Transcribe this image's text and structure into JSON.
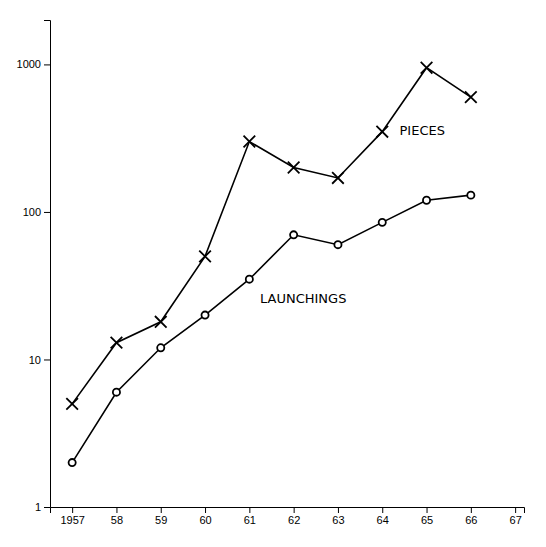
{
  "chart_data": {
    "type": "line",
    "log": "y",
    "grid": false,
    "x": [
      1957,
      1958,
      1959,
      1960,
      1961,
      1962,
      1963,
      1964,
      1965,
      1966
    ],
    "series": [
      {
        "color": "#000000",
        "marker": "x",
        "line_style": "solid",
        "values": [
          5,
          13,
          18,
          50,
          300,
          200,
          170,
          350,
          950,
          600
        ]
      },
      {
        "color": "#000000",
        "marker": "circle",
        "line_style": "solid",
        "values": [
          2,
          6,
          12,
          20,
          35,
          70,
          60,
          85,
          120,
          130
        ]
      }
    ],
    "xlim": [
      1956.5,
      1967.2
    ],
    "ylim": [
      1,
      2000
    ],
    "xticks": [
      1957,
      {
        "value": 1958,
        "label": "58"
      },
      {
        "value": 1959,
        "label": "59"
      },
      {
        "value": 1960,
        "label": "60"
      },
      {
        "value": 1961,
        "label": "61"
      },
      {
        "value": 1962,
        "label": "62"
      },
      {
        "value": 1963,
        "label": "63"
      },
      {
        "value": 1964,
        "label": "64"
      },
      {
        "value": 1965,
        "label": "65"
      },
      {
        "value": 1966,
        "label": "66"
      },
      {
        "value": 1967,
        "label": "67"
      }
    ],
    "yticks": [
      1,
      10,
      100,
      1000
    ],
    "annotations": [
      {
        "text": "PIECES",
        "x": 1964.3,
        "y": 350
      },
      {
        "text": "LAUNCHINGS",
        "x": 1961.15,
        "y": 28
      }
    ]
  }
}
